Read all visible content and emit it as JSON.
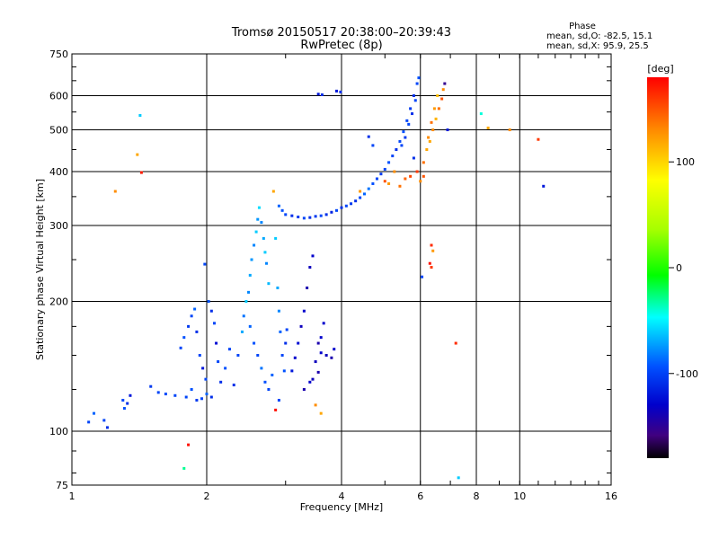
{
  "chart_data": {
    "type": "scatter",
    "title": "Tromsø 20150517 20:38:00–20:39:43",
    "subtitle": "RwPretec (8p)",
    "xlabel": "Frequency [MHz]",
    "ylabel": "Stationary phase Virtual Height [km]",
    "x_scale": "log",
    "y_scale": "log",
    "xlim": [
      1,
      16
    ],
    "ylim": [
      75,
      750
    ],
    "x_ticks": [
      1,
      2,
      4,
      6,
      8,
      10,
      16
    ],
    "y_ticks": [
      75,
      100,
      200,
      300,
      400,
      500,
      600,
      750
    ],
    "grid": true,
    "stats": {
      "title": "Phase",
      "line1": "mean, sd,O: -82.5, 15.1",
      "line2": "mean, sd,X:  95.9, 25.5"
    },
    "colorbar": {
      "label": "[deg]",
      "range": [
        -180,
        180
      ],
      "ticks": [
        100,
        0,
        -100
      ]
    },
    "series": [
      {
        "points": [
          [
            1.09,
            105,
            -100
          ],
          [
            1.12,
            110,
            -90
          ],
          [
            1.18,
            106,
            -100
          ],
          [
            1.2,
            102,
            -110
          ],
          [
            1.25,
            360,
            130
          ],
          [
            1.3,
            118,
            -100
          ],
          [
            1.31,
            113,
            -95
          ],
          [
            1.33,
            116,
            -110
          ],
          [
            1.35,
            121,
            -120
          ],
          [
            1.4,
            438,
            120
          ],
          [
            1.42,
            540,
            -60
          ],
          [
            1.43,
            398,
            170
          ],
          [
            1.5,
            127,
            -105
          ],
          [
            1.56,
            123,
            -100
          ],
          [
            1.62,
            122,
            -98
          ],
          [
            1.7,
            121,
            -100
          ],
          [
            1.78,
            82,
            -30
          ],
          [
            1.8,
            120,
            -100
          ],
          [
            1.82,
            93,
            175
          ],
          [
            1.85,
            125,
            -95
          ],
          [
            1.9,
            118,
            -105
          ],
          [
            1.95,
            119,
            -100
          ],
          [
            1.98,
            244,
            -100
          ],
          [
            2.0,
            122,
            -90
          ],
          [
            2.05,
            120,
            -110
          ],
          [
            1.75,
            156,
            -100
          ],
          [
            1.78,
            165,
            -95
          ],
          [
            1.82,
            175,
            -105
          ],
          [
            1.85,
            185,
            -100
          ],
          [
            1.88,
            192,
            -90
          ],
          [
            1.9,
            170,
            -110
          ],
          [
            1.93,
            150,
            -100
          ],
          [
            1.96,
            140,
            -120
          ],
          [
            1.99,
            132,
            -100
          ],
          [
            2.02,
            200,
            -95
          ],
          [
            2.05,
            190,
            -110
          ],
          [
            2.08,
            178,
            -100
          ],
          [
            2.1,
            160,
            -125
          ],
          [
            2.12,
            145,
            -100
          ],
          [
            2.15,
            130,
            -110
          ],
          [
            2.2,
            140,
            -95
          ],
          [
            2.25,
            155,
            -100
          ],
          [
            2.3,
            128,
            -110
          ],
          [
            2.35,
            150,
            -100
          ],
          [
            2.4,
            170,
            -70
          ],
          [
            2.42,
            185,
            -85
          ],
          [
            2.45,
            200,
            -60
          ],
          [
            2.48,
            210,
            -80
          ],
          [
            2.5,
            230,
            -70
          ],
          [
            2.52,
            250,
            -75
          ],
          [
            2.55,
            270,
            -80
          ],
          [
            2.58,
            290,
            -60
          ],
          [
            2.6,
            310,
            -75
          ],
          [
            2.62,
            330,
            -55
          ],
          [
            2.65,
            305,
            -80
          ],
          [
            2.68,
            280,
            -70
          ],
          [
            2.7,
            260,
            -60
          ],
          [
            2.72,
            245,
            -80
          ],
          [
            2.75,
            220,
            -65
          ],
          [
            2.5,
            175,
            -90
          ],
          [
            2.55,
            160,
            -95
          ],
          [
            2.6,
            150,
            -100
          ],
          [
            2.65,
            140,
            -85
          ],
          [
            2.7,
            130,
            -95
          ],
          [
            2.75,
            125,
            -100
          ],
          [
            2.8,
            135,
            -90
          ],
          [
            2.82,
            360,
            120
          ],
          [
            2.85,
            280,
            -60
          ],
          [
            2.88,
            215,
            -70
          ],
          [
            2.9,
            190,
            -80
          ],
          [
            2.92,
            170,
            -90
          ],
          [
            2.95,
            150,
            -100
          ],
          [
            2.98,
            138,
            -95
          ],
          [
            3.0,
            160,
            -110
          ],
          [
            3.02,
            172,
            -100
          ],
          [
            2.85,
            112,
            175
          ],
          [
            2.9,
            118,
            -100
          ],
          [
            2.9,
            333,
            -90
          ],
          [
            2.95,
            325,
            -95
          ],
          [
            3.0,
            318,
            -100
          ],
          [
            3.1,
            316,
            -110
          ],
          [
            3.2,
            314,
            -105
          ],
          [
            3.3,
            312,
            -100
          ],
          [
            3.4,
            313,
            -110
          ],
          [
            3.5,
            315,
            -105
          ],
          [
            3.6,
            316,
            -100
          ],
          [
            3.7,
            318,
            -110
          ],
          [
            3.8,
            322,
            -115
          ],
          [
            3.9,
            325,
            -100
          ],
          [
            4.0,
            330,
            -110
          ],
          [
            4.1,
            333,
            -100
          ],
          [
            4.2,
            337,
            -105
          ],
          [
            4.3,
            342,
            -110
          ],
          [
            4.4,
            348,
            -100
          ],
          [
            4.5,
            355,
            -90
          ],
          [
            4.6,
            365,
            -85
          ],
          [
            4.7,
            375,
            -95
          ],
          [
            4.8,
            385,
            -100
          ],
          [
            4.9,
            395,
            -105
          ],
          [
            5.0,
            405,
            -100
          ],
          [
            5.1,
            420,
            -95
          ],
          [
            5.2,
            435,
            -100
          ],
          [
            5.3,
            450,
            -110
          ],
          [
            5.4,
            470,
            -100
          ],
          [
            5.5,
            495,
            -95
          ],
          [
            5.6,
            525,
            -100
          ],
          [
            5.7,
            560,
            -105
          ],
          [
            5.8,
            600,
            -110
          ],
          [
            5.9,
            640,
            -100
          ],
          [
            5.95,
            660,
            -95
          ],
          [
            5.85,
            585,
            -100
          ],
          [
            5.75,
            545,
            -110
          ],
          [
            5.65,
            515,
            -100
          ],
          [
            5.55,
            480,
            -105
          ],
          [
            5.45,
            460,
            -100
          ],
          [
            3.1,
            138,
            -120
          ],
          [
            3.15,
            148,
            -130
          ],
          [
            3.2,
            160,
            -125
          ],
          [
            3.25,
            175,
            -135
          ],
          [
            3.3,
            190,
            -130
          ],
          [
            3.35,
            215,
            -140
          ],
          [
            3.4,
            240,
            -135
          ],
          [
            3.45,
            255,
            -130
          ],
          [
            3.3,
            125,
            -140
          ],
          [
            3.4,
            130,
            -130
          ],
          [
            3.5,
            145,
            -135
          ],
          [
            3.55,
            160,
            -140
          ],
          [
            3.6,
            152,
            -130
          ],
          [
            3.7,
            150,
            -135
          ],
          [
            3.8,
            148,
            -140
          ],
          [
            3.85,
            155,
            -130
          ],
          [
            3.6,
            165,
            -130
          ],
          [
            3.65,
            178,
            -130
          ],
          [
            3.55,
            137,
            -140
          ],
          [
            3.45,
            132,
            -135
          ],
          [
            3.5,
            115,
            130
          ],
          [
            3.6,
            110,
            120
          ],
          [
            3.55,
            605,
            -120
          ],
          [
            3.62,
            603,
            -110
          ],
          [
            3.9,
            615,
            -120
          ],
          [
            3.98,
            612,
            -110
          ],
          [
            4.4,
            360,
            125
          ],
          [
            4.6,
            482,
            -110
          ],
          [
            4.7,
            460,
            -100
          ],
          [
            5.0,
            380,
            150
          ],
          [
            5.1,
            375,
            125
          ],
          [
            5.25,
            400,
            130
          ],
          [
            5.4,
            370,
            140
          ],
          [
            5.55,
            385,
            145
          ],
          [
            5.7,
            390,
            155
          ],
          [
            5.9,
            400,
            160
          ],
          [
            5.8,
            430,
            -110
          ],
          [
            6.05,
            228,
            -100
          ],
          [
            6.3,
            245,
            175
          ],
          [
            6.35,
            270,
            165
          ],
          [
            6.4,
            262,
            125
          ],
          [
            6.35,
            240,
            160
          ],
          [
            6.1,
            420,
            140
          ],
          [
            6.3,
            470,
            120
          ],
          [
            6.4,
            500,
            130
          ],
          [
            6.5,
            530,
            115
          ],
          [
            6.6,
            560,
            140
          ],
          [
            6.7,
            590,
            150
          ],
          [
            6.75,
            620,
            130
          ],
          [
            6.8,
            640,
            -150
          ],
          [
            6.55,
            600,
            110
          ],
          [
            6.45,
            560,
            125
          ],
          [
            6.35,
            520,
            140
          ],
          [
            6.25,
            480,
            130
          ],
          [
            6.2,
            450,
            120
          ],
          [
            6.9,
            500,
            -120
          ],
          [
            7.2,
            160,
            165
          ],
          [
            7.3,
            78,
            -60
          ],
          [
            8.2,
            545,
            -40
          ],
          [
            8.5,
            505,
            120
          ],
          [
            9.5,
            500,
            130
          ],
          [
            11,
            475,
            160
          ],
          [
            11.3,
            370,
            -120
          ],
          [
            6.0,
            380,
            130
          ],
          [
            6.1,
            390,
            150
          ]
        ]
      }
    ]
  }
}
